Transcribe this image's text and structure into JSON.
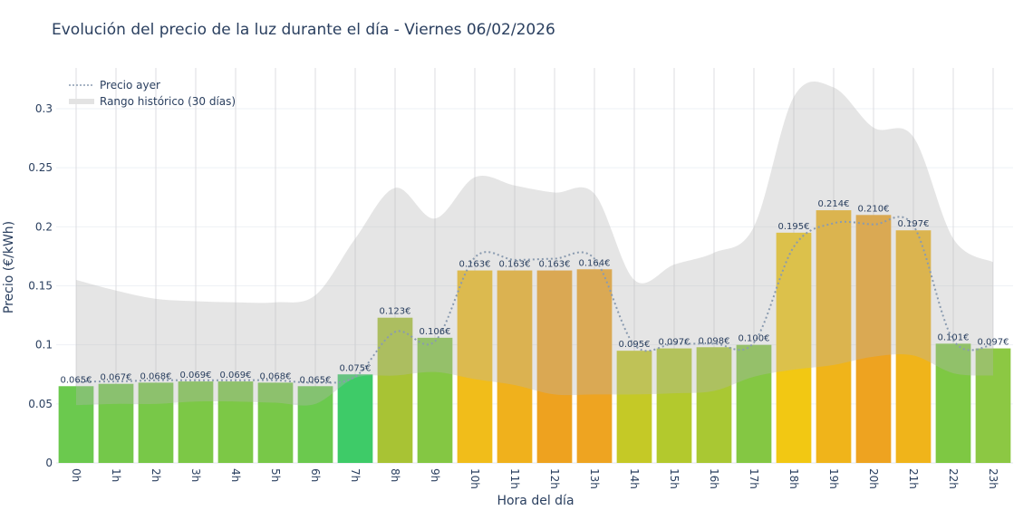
{
  "chart_data": {
    "type": "bar",
    "title": "Evolución del precio de la luz durante el día - Viernes 06/02/2026",
    "xlabel": "Hora del día",
    "ylabel": "Precio (€/kWh)",
    "ylim": [
      0,
      0.33
    ],
    "yticks": [
      0,
      0.05,
      0.1,
      0.15,
      0.2,
      0.25,
      0.3
    ],
    "ytick_labels": [
      "0",
      "0.05",
      "0.1",
      "0.15",
      "0.2",
      "0.25",
      "0.3"
    ],
    "grid": true,
    "legend_position": "top-left",
    "categories": [
      "0h",
      "1h",
      "2h",
      "3h",
      "4h",
      "5h",
      "6h",
      "7h",
      "8h",
      "9h",
      "10h",
      "11h",
      "12h",
      "13h",
      "14h",
      "15h",
      "16h",
      "17h",
      "18h",
      "19h",
      "20h",
      "21h",
      "22h",
      "23h"
    ],
    "values": [
      0.065,
      0.067,
      0.068,
      0.069,
      0.069,
      0.068,
      0.065,
      0.075,
      0.123,
      0.106,
      0.163,
      0.163,
      0.163,
      0.164,
      0.095,
      0.097,
      0.098,
      0.1,
      0.195,
      0.214,
      0.21,
      0.197,
      0.101,
      0.097
    ],
    "data_labels": [
      "0.065€",
      "0.067€",
      "0.068€",
      "0.069€",
      "0.069€",
      "0.068€",
      "0.065€",
      "0.075€",
      "0.123€",
      "0.106€",
      "0.163€",
      "0.163€",
      "0.163€",
      "0.164€",
      "0.095€",
      "0.097€",
      "0.098€",
      "0.100€",
      "0.195€",
      "0.214€",
      "0.210€",
      "0.197€",
      "0.101€",
      "0.097€"
    ],
    "bar_colors": [
      "#6bc94e",
      "#74c84a",
      "#78c848",
      "#7cc846",
      "#7cc846",
      "#78c848",
      "#6bc94e",
      "#3ecb68",
      "#a8c334",
      "#84c743",
      "#f1bd1a",
      "#f0b11c",
      "#eea21f",
      "#eea421",
      "#c5c926",
      "#b3c92d",
      "#a9c833",
      "#84c743",
      "#f2c813",
      "#f0b41a",
      "#eea320",
      "#f0b41a",
      "#7ec843",
      "#8cc843"
    ],
    "series": [
      {
        "name": "Precio ayer",
        "type": "line",
        "style": "dotted",
        "color": "#8a9bb0",
        "values": [
          0.069,
          0.069,
          0.07,
          0.07,
          0.07,
          0.07,
          0.068,
          0.073,
          0.111,
          0.103,
          0.174,
          0.172,
          0.173,
          0.173,
          0.1,
          0.101,
          0.101,
          0.102,
          0.183,
          0.203,
          0.202,
          0.201,
          0.104,
          0.1
        ]
      },
      {
        "name": "Rango histórico (30 días)",
        "type": "band",
        "color": "#e5e5e5",
        "upper": [
          0.155,
          0.146,
          0.139,
          0.137,
          0.136,
          0.136,
          0.142,
          0.19,
          0.233,
          0.207,
          0.242,
          0.235,
          0.229,
          0.228,
          0.155,
          0.168,
          0.178,
          0.2,
          0.31,
          0.318,
          0.284,
          0.276,
          0.19,
          0.17
        ],
        "lower": [
          0.049,
          0.05,
          0.05,
          0.052,
          0.052,
          0.051,
          0.05,
          0.072,
          0.074,
          0.077,
          0.071,
          0.066,
          0.058,
          0.058,
          0.058,
          0.059,
          0.061,
          0.073,
          0.079,
          0.083,
          0.09,
          0.091,
          0.076,
          0.074
        ]
      }
    ]
  }
}
